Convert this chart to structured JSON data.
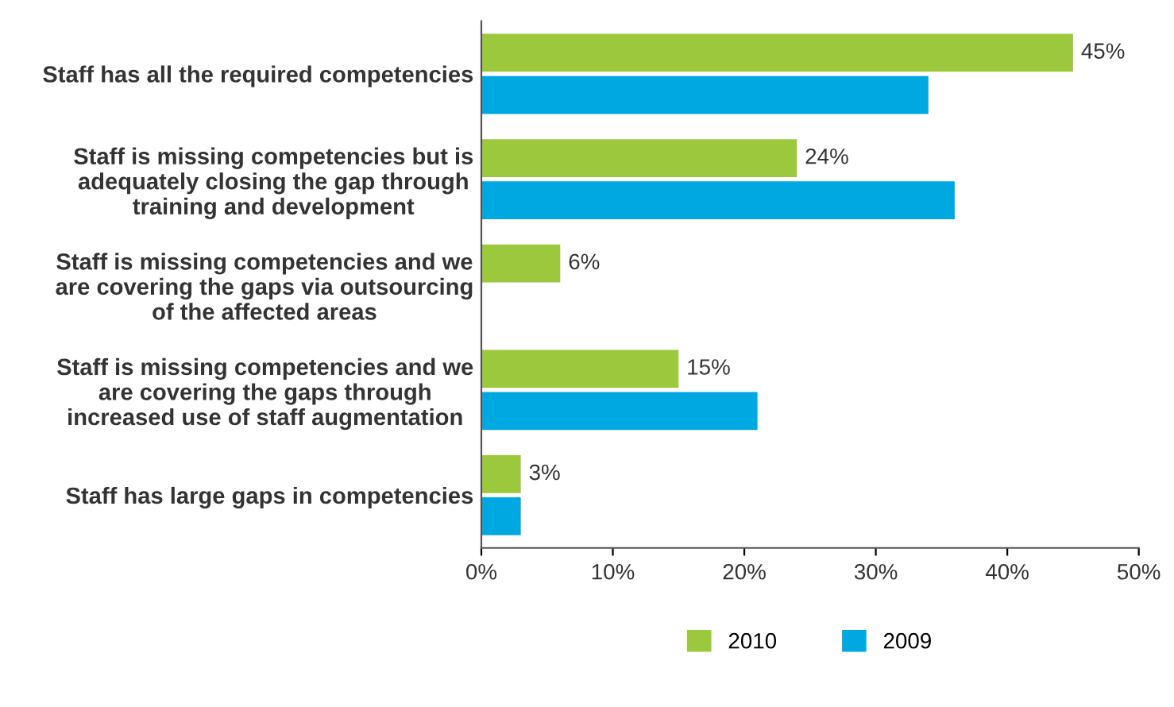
{
  "chart_data": {
    "type": "bar",
    "orientation": "horizontal",
    "categories": [
      "Staff has all the required competencies",
      "Staff is missing competencies but is\nadequately closing the gap through\ntraining and development",
      "Staff is missing competencies and we\nare covering the gaps via outsourcing\nof the affected areas",
      "Staff is missing competencies and we\nare covering the gaps through\nincreased use of staff augmentation",
      "Staff has large gaps in competencies"
    ],
    "series": [
      {
        "name": "2010",
        "color": "#9bc83c",
        "values": [
          45,
          24,
          6,
          15,
          3
        ],
        "value_labels": [
          "45%",
          "24%",
          "6%",
          "15%",
          "3%"
        ]
      },
      {
        "name": "2009",
        "color": "#00a8e1",
        "values": [
          34,
          36,
          null,
          21,
          3
        ]
      }
    ],
    "xlim": [
      0,
      50
    ],
    "xticks": [
      {
        "value": 0,
        "label": "0%"
      },
      {
        "value": 10,
        "label": "10%"
      },
      {
        "value": 20,
        "label": "20%"
      },
      {
        "value": 30,
        "label": "30%"
      },
      {
        "value": 40,
        "label": "40%"
      },
      {
        "value": 50,
        "label": "50%"
      }
    ],
    "grid": false,
    "legend": "bottom"
  }
}
